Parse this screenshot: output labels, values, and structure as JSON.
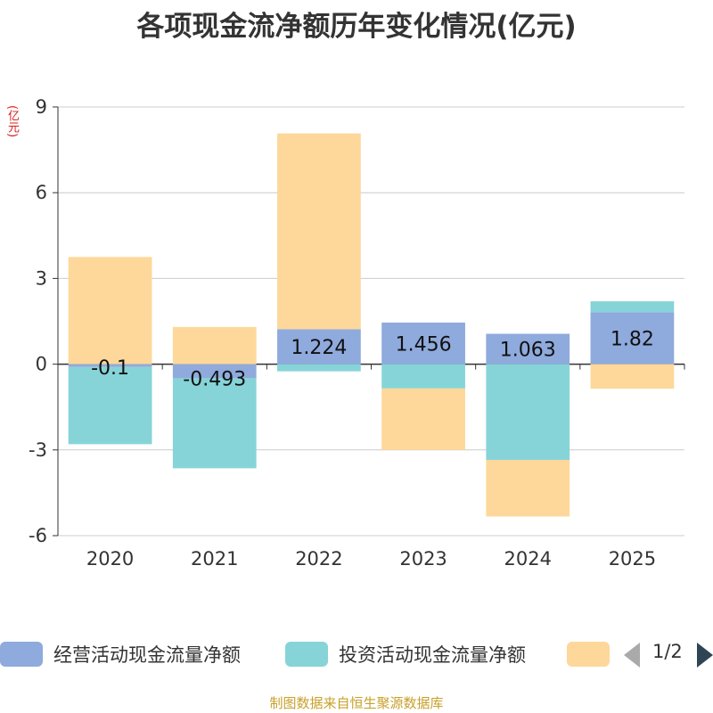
{
  "chart_data": {
    "type": "bar",
    "stacked": true,
    "title": "各项现金流净额历年变化情况(亿元)",
    "ylabel": "(亿元)",
    "xlabel": "",
    "ylim": [
      -6,
      9
    ],
    "yticks": [
      -6,
      -3,
      0,
      3,
      6,
      9
    ],
    "categories": [
      "2020",
      "2021",
      "2022",
      "2023",
      "2024",
      "2025"
    ],
    "series": [
      {
        "name": "经营活动现金流量净额",
        "color": "#8faadc",
        "values": [
          -0.1,
          -0.493,
          1.224,
          1.456,
          1.063,
          1.82
        ],
        "labels": [
          "-0.1",
          "-0.493",
          "1.224",
          "1.456",
          "1.063",
          "1.82"
        ]
      },
      {
        "name": "投资活动现金流量净额",
        "color": "#86d4d8",
        "values": [
          -2.7,
          -3.15,
          -0.25,
          -0.85,
          -3.35,
          0.38
        ]
      },
      {
        "name": "",
        "color": "#fdd89a",
        "values": [
          3.75,
          1.3,
          6.85,
          -2.15,
          -1.98,
          -0.86
        ]
      }
    ]
  },
  "legend": {
    "items": [
      {
        "label": "经营活动现金流量净额",
        "color": "#8faadc"
      },
      {
        "label": "投资活动现金流量净额",
        "color": "#86d4d8"
      },
      {
        "label": "",
        "color": "#fdd89a"
      }
    ],
    "page": "1/2"
  },
  "source": "制图数据来自恒生聚源数据库"
}
